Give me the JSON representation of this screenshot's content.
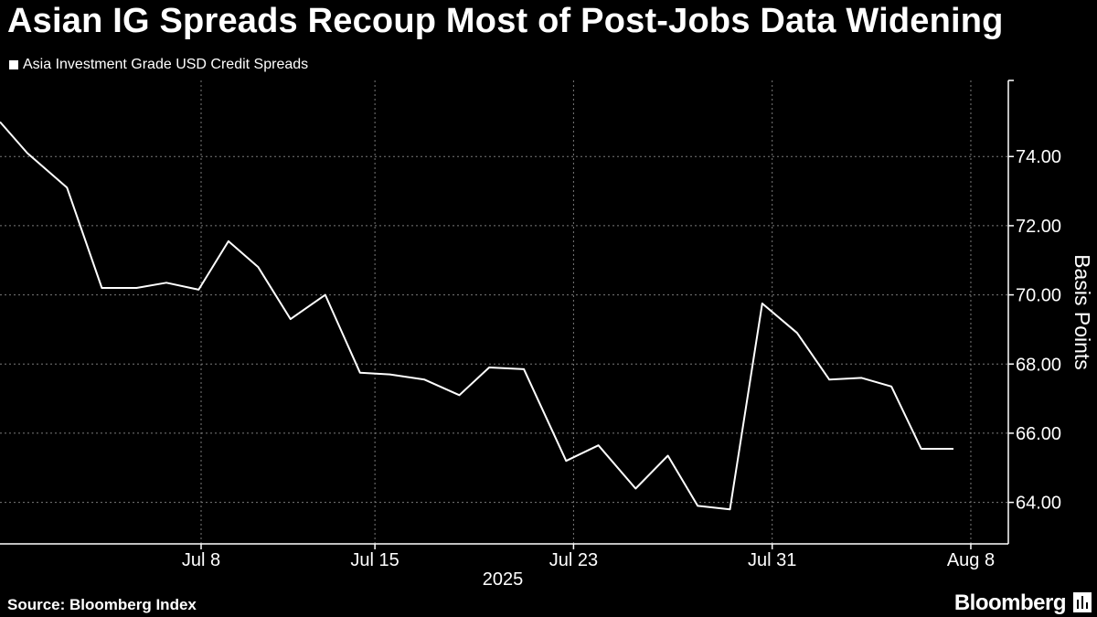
{
  "header": {
    "title": "Asian IG Spreads Recoup Most of Post-Jobs Data Widening"
  },
  "footer": {
    "source": "Source: Bloomberg Index",
    "brand": "Bloomberg",
    "brand_icon": "chart-icon"
  },
  "colors": {
    "background": "#000000",
    "line": "#ffffff",
    "grid": "#7a7a7a",
    "text": "#ffffff"
  },
  "chart_data": {
    "type": "line",
    "title": "Asian IG Spreads Recoup Most of Post-Jobs Data Widening",
    "legend": [
      "Asia Investment Grade USD Credit Spreads"
    ],
    "legend_position": "top-left",
    "xlabel": "2025",
    "ylabel": "Basis Points",
    "ylim": [
      62.8,
      76.2
    ],
    "y_ticks": [
      64,
      66,
      68,
      70,
      72,
      74
    ],
    "y_tick_labels": [
      "64.00",
      "66.00",
      "68.00",
      "70.00",
      "72.00",
      "74.00"
    ],
    "x_ticks": [
      "Jul 8",
      "Jul 15",
      "Jul 23",
      "Jul 31",
      "Aug 8"
    ],
    "x_tick_index": [
      8,
      15,
      23,
      31,
      39
    ],
    "x_index_range": [
      -0.1,
      40.4
    ],
    "grid": true,
    "series": [
      {
        "name": "Asia Investment Grade USD Credit Spreads",
        "x_index": [
          -0.1,
          1,
          2.6,
          4,
          5.4,
          6.6,
          7.9,
          9.1,
          10.3,
          11.6,
          13,
          14.4,
          15.6,
          17,
          18.4,
          19.6,
          21,
          22.7,
          24,
          25.5,
          26.8,
          28,
          29.3,
          30.6,
          32,
          33.3,
          34.6,
          35.8,
          37,
          38.3
        ],
        "values": [
          75.0,
          74.1,
          73.1,
          70.2,
          70.2,
          70.35,
          70.15,
          71.55,
          70.8,
          69.3,
          70.0,
          67.75,
          67.7,
          67.55,
          67.1,
          67.9,
          67.85,
          65.2,
          65.65,
          64.4,
          65.35,
          63.9,
          63.8,
          69.75,
          68.9,
          67.55,
          67.6,
          67.35,
          65.55,
          65.55
        ]
      }
    ]
  }
}
